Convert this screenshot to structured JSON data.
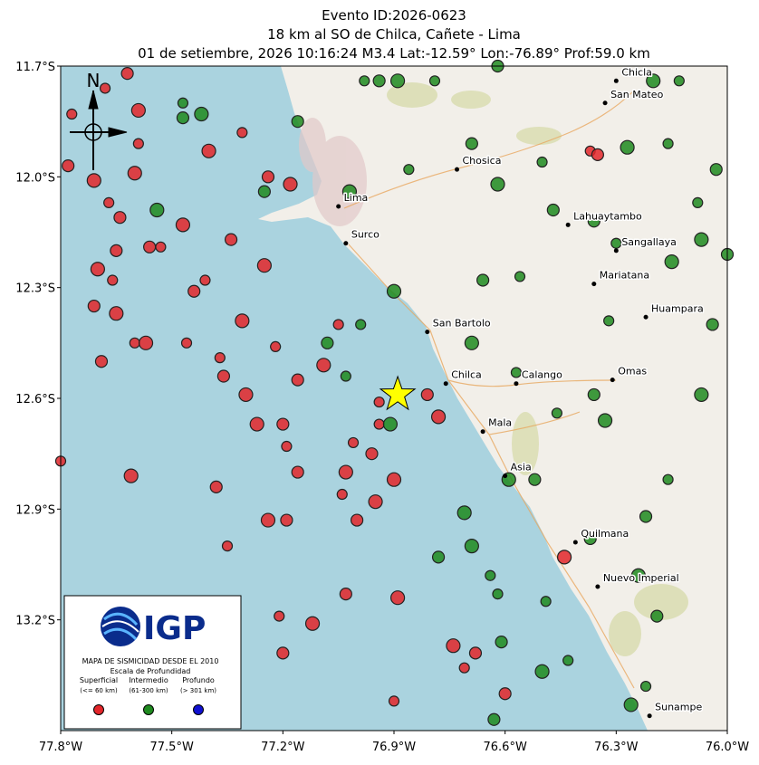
{
  "chart_data": {
    "type": "scatter",
    "title": [
      "Evento ID:2026-0623",
      "18 km al SO de Chilca, Cañete - Lima",
      "01 de setiembre, 2026 10:16:24 M3.4 Lat:-12.59° Lon:-76.89° Prof:59.0 km"
    ],
    "event": {
      "lon": -76.89,
      "lat": -12.59,
      "color": "#ffff00"
    },
    "xlim": [
      -77.8,
      -76.0
    ],
    "ylim": [
      -13.5,
      -11.7
    ],
    "xticks": [
      {
        "value": -77.8,
        "label": "77.8°W"
      },
      {
        "value": -77.5,
        "label": "77.5°W"
      },
      {
        "value": -77.2,
        "label": "77.2°W"
      },
      {
        "value": -76.9,
        "label": "76.9°W"
      },
      {
        "value": -76.6,
        "label": "76.6°W"
      },
      {
        "value": -76.3,
        "label": "76.3°W"
      },
      {
        "value": -76.0,
        "label": "76.0°W"
      }
    ],
    "yticks": [
      {
        "value": -11.7,
        "label": "11.7°S"
      },
      {
        "value": -12.0,
        "label": "12.0°S"
      },
      {
        "value": -12.3,
        "label": "12.3°S"
      },
      {
        "value": -12.6,
        "label": "12.6°S"
      },
      {
        "value": -12.9,
        "label": "12.9°S"
      },
      {
        "value": -13.2,
        "label": "13.2°S"
      }
    ],
    "series": [
      {
        "name": "Superficial",
        "range": "(<= 60 km)",
        "color": "#e3262a",
        "x": [
          -77.77,
          -77.78,
          -77.71,
          -77.67,
          -77.64,
          -77.59,
          -77.59,
          -77.65,
          -77.7,
          -77.66,
          -77.71,
          -77.65,
          -77.6,
          -77.69,
          -77.57,
          -77.46,
          -77.56,
          -77.47,
          -77.41,
          -77.44,
          -77.31,
          -77.37,
          -77.36,
          -77.3,
          -77.22,
          -77.16,
          -77.09,
          -77.05,
          -77.2,
          -77.27,
          -77.19,
          -77.16,
          -77.03,
          -77.01,
          -76.96,
          -76.9,
          -76.94,
          -76.81,
          -76.78,
          -77.04,
          -77.0,
          -76.95,
          -76.94,
          -77.19,
          -77.24,
          -77.35,
          -77.38,
          -77.61,
          -77.8,
          -77.03,
          -77.12,
          -77.21,
          -77.2,
          -76.89,
          -76.71,
          -76.68,
          -76.74,
          -76.9,
          -76.6,
          -76.44,
          -76.37,
          -76.35,
          -77.4,
          -77.31,
          -77.24,
          -77.18,
          -77.68,
          -77.62,
          -77.6,
          -77.53,
          -77.34,
          -77.25
        ],
        "y": [
          -11.83,
          -11.97,
          -12.01,
          -12.07,
          -12.11,
          -11.82,
          -11.91,
          -12.2,
          -12.25,
          -12.28,
          -12.35,
          -12.37,
          -12.45,
          -12.5,
          -12.45,
          -12.45,
          -12.19,
          -12.13,
          -12.28,
          -12.31,
          -12.39,
          -12.49,
          -12.54,
          -12.59,
          -12.46,
          -12.55,
          -12.51,
          -12.4,
          -12.67,
          -12.67,
          -12.73,
          -12.8,
          -12.8,
          -12.72,
          -12.75,
          -12.82,
          -12.67,
          -12.59,
          -12.65,
          -12.86,
          -12.93,
          -12.88,
          -12.61,
          -12.93,
          -12.93,
          -13.0,
          -12.84,
          -12.81,
          -12.77,
          -13.13,
          -13.21,
          -13.19,
          -13.29,
          -13.14,
          -13.33,
          -13.29,
          -13.27,
          -13.42,
          -13.4,
          -13.03,
          -11.93,
          -11.94,
          -11.93,
          -11.88,
          -12.0,
          -12.02,
          -11.76,
          -11.72,
          -11.99,
          -12.19,
          -12.17,
          -12.24
        ]
      },
      {
        "name": "Intermedio",
        "range": "(61-300 km)",
        "color": "#1f8a1f",
        "x": [
          -76.98,
          -76.94,
          -76.89,
          -76.79,
          -76.62,
          -76.2,
          -76.13,
          -77.47,
          -77.42,
          -77.47,
          -77.16,
          -77.02,
          -76.86,
          -76.69,
          -76.62,
          -76.5,
          -76.47,
          -76.27,
          -76.16,
          -76.03,
          -76.07,
          -76.3,
          -76.36,
          -76.15,
          -76.56,
          -76.66,
          -76.9,
          -76.99,
          -77.08,
          -76.69,
          -76.57,
          -76.36,
          -76.33,
          -76.46,
          -76.52,
          -76.59,
          -76.16,
          -76.22,
          -76.07,
          -76.32,
          -76.04,
          -76.69,
          -76.64,
          -76.78,
          -76.71,
          -76.62,
          -76.37,
          -76.24,
          -76.49,
          -76.61,
          -76.5,
          -76.43,
          -76.63,
          -76.26,
          -76.22,
          -76.19,
          -76.91,
          -77.03,
          -77.25,
          -77.54,
          -76.08,
          -76.0
        ],
        "y": [
          -11.74,
          -11.74,
          -11.74,
          -11.74,
          -11.7,
          -11.74,
          -11.74,
          -11.84,
          -11.83,
          -11.8,
          -11.85,
          -12.04,
          -11.98,
          -11.91,
          -12.02,
          -11.96,
          -12.09,
          -11.92,
          -11.91,
          -11.98,
          -12.17,
          -12.18,
          -12.12,
          -12.23,
          -12.27,
          -12.28,
          -12.31,
          -12.4,
          -12.45,
          -12.45,
          -12.53,
          -12.59,
          -12.66,
          -12.64,
          -12.82,
          -12.82,
          -12.82,
          -12.92,
          -12.59,
          -12.39,
          -12.4,
          -13.0,
          -13.08,
          -13.03,
          -12.91,
          -13.13,
          -12.98,
          -13.08,
          -13.15,
          -13.26,
          -13.34,
          -13.31,
          -13.47,
          -13.43,
          -13.38,
          -13.19,
          -12.67,
          -12.54,
          -12.04,
          -12.09,
          -12.07,
          -12.21
        ]
      },
      {
        "name": "Profundo",
        "range": "(> 301 km)",
        "color": "#1010d0",
        "x": [],
        "y": []
      }
    ],
    "places": [
      {
        "name": "Chicla",
        "lon": -76.3,
        "lat": -11.74
      },
      {
        "name": "San Mateo",
        "lon": -76.33,
        "lat": -11.8
      },
      {
        "name": "Chosica",
        "lon": -76.73,
        "lat": -11.98
      },
      {
        "name": "Lima",
        "lon": -77.05,
        "lat": -12.08
      },
      {
        "name": "Surco",
        "lon": -77.03,
        "lat": -12.18
      },
      {
        "name": "Lahuaytambo",
        "lon": -76.43,
        "lat": -12.13
      },
      {
        "name": "Sangallaya",
        "lon": -76.3,
        "lat": -12.2
      },
      {
        "name": "Mariatana",
        "lon": -76.36,
        "lat": -12.29
      },
      {
        "name": "Huampara",
        "lon": -76.22,
        "lat": -12.38
      },
      {
        "name": "San Bartolo",
        "lon": -76.81,
        "lat": -12.42
      },
      {
        "name": "Chilca",
        "lon": -76.76,
        "lat": -12.56
      },
      {
        "name": "Calango",
        "lon": -76.57,
        "lat": -12.56
      },
      {
        "name": "Omas",
        "lon": -76.31,
        "lat": -12.55
      },
      {
        "name": "Mala",
        "lon": -76.66,
        "lat": -12.69
      },
      {
        "name": "Asia",
        "lon": -76.6,
        "lat": -12.81
      },
      {
        "name": "Quilmana",
        "lon": -76.41,
        "lat": -12.99
      },
      {
        "name": "Nuevo Imperial",
        "lon": -76.35,
        "lat": -13.11
      },
      {
        "name": "Sunampe",
        "lon": -76.21,
        "lat": -13.46
      }
    ],
    "north": "N",
    "logo": "IGP",
    "legend": "lower left",
    "legend_title": "MAPA DE SISMICIDAD DESDE EL 2010",
    "legend_subtitle": "Escala de Profundidad"
  }
}
